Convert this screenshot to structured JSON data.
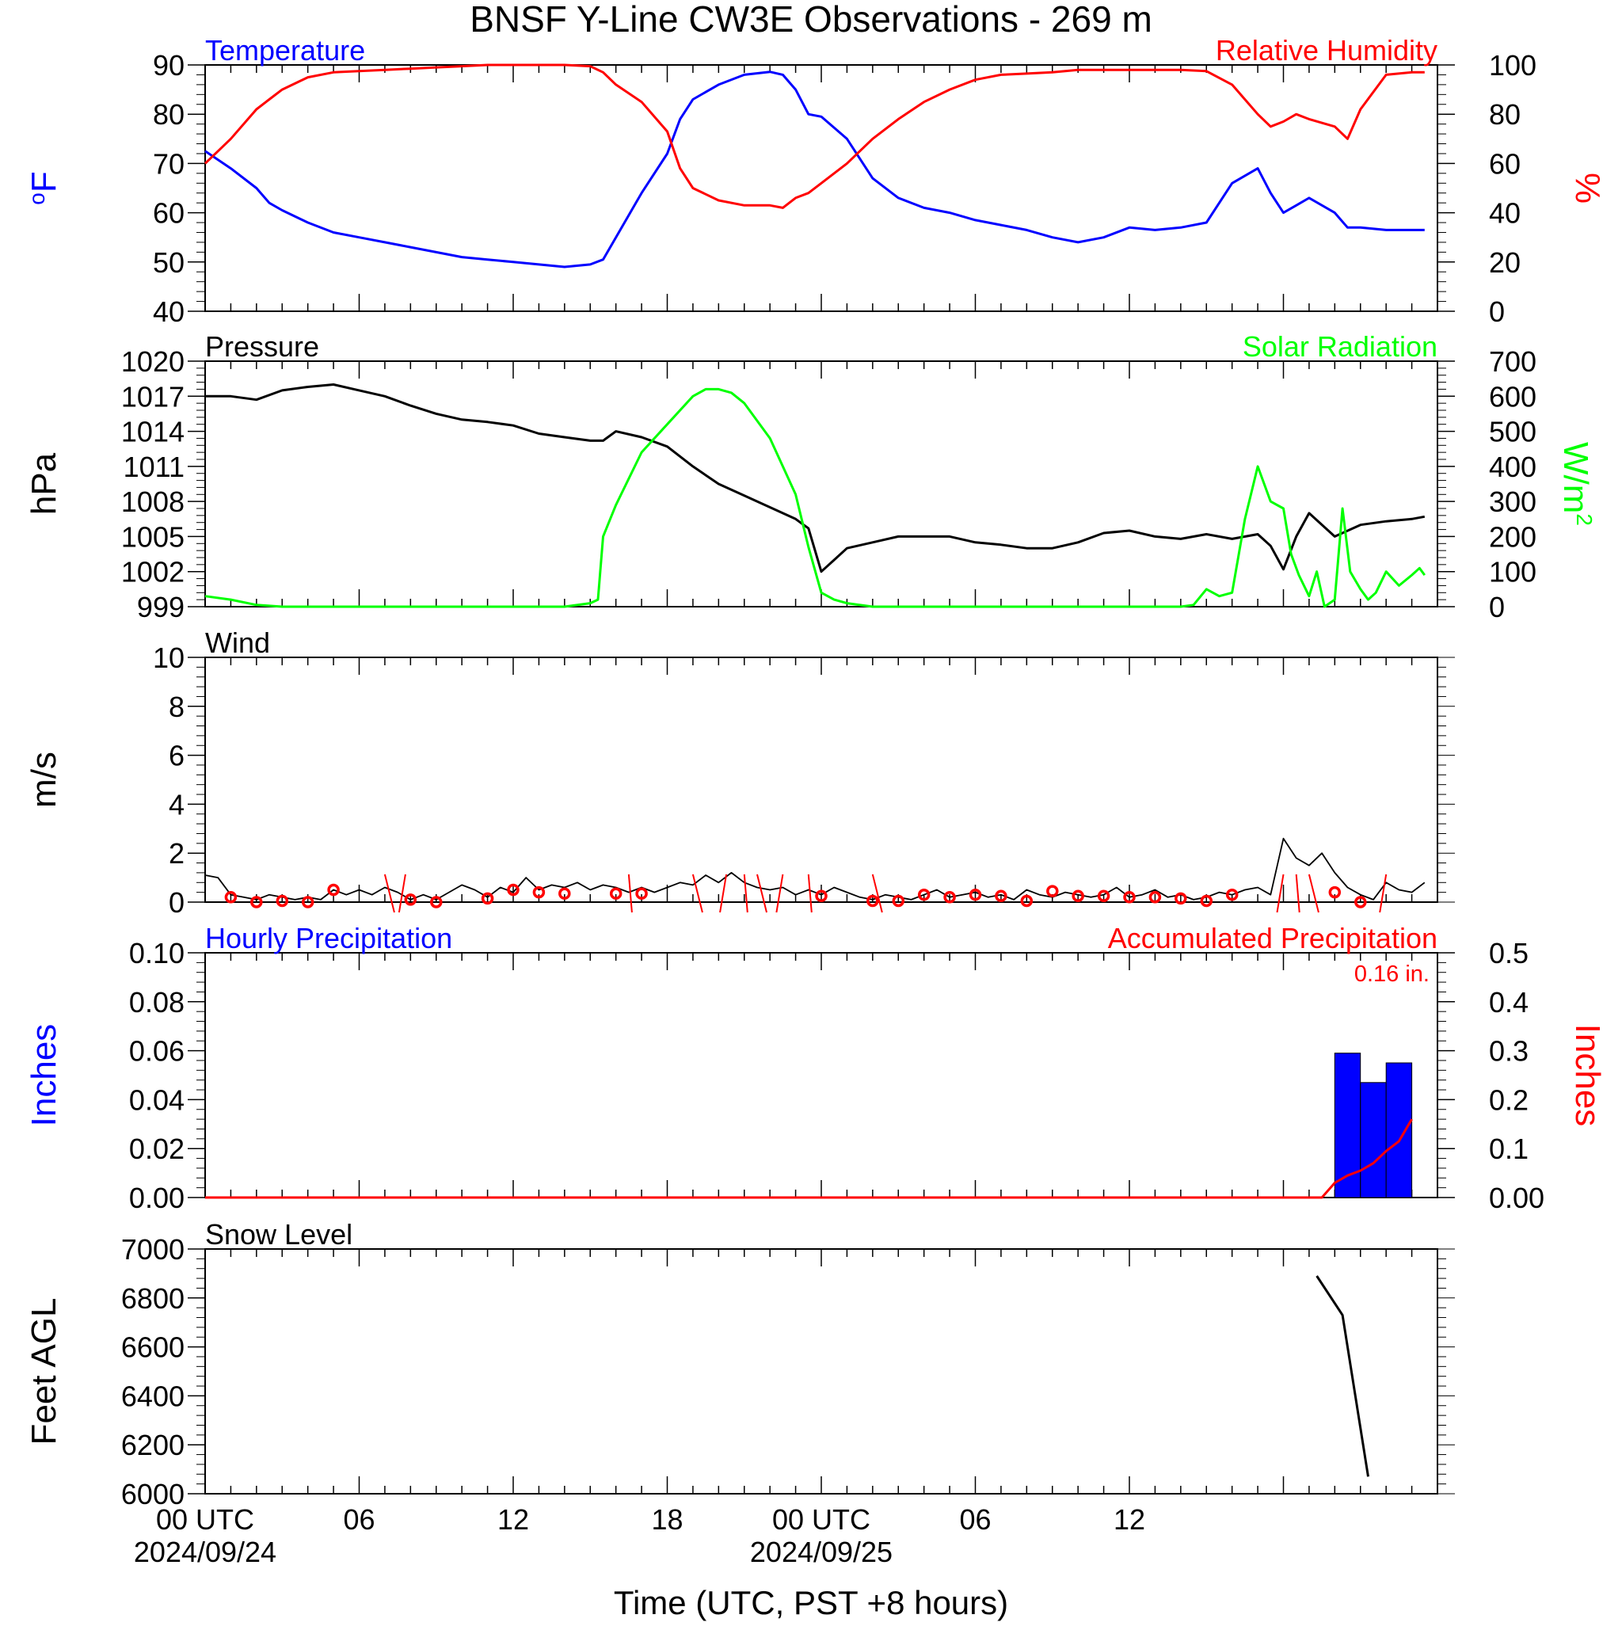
{
  "page_title": "BNSF Y-Line CW3E Observations - 269 m",
  "x_axis": {
    "label": "Time (UTC, PST +8 hours)",
    "tick_labels": [
      {
        "hour": 0,
        "text": "00 UTC",
        "date": "2024/09/24"
      },
      {
        "hour": 6,
        "text": "06",
        "date": ""
      },
      {
        "hour": 12,
        "text": "12",
        "date": ""
      },
      {
        "hour": 18,
        "text": "18",
        "date": ""
      },
      {
        "hour": 24,
        "text": "00 UTC",
        "date": "2024/09/25"
      },
      {
        "hour": 30,
        "text": "06",
        "date": ""
      },
      {
        "hour": 36,
        "text": "12",
        "date": ""
      }
    ],
    "range_hours": [
      0,
      48
    ]
  },
  "colors": {
    "temperature": "#0000ff",
    "humidity": "#ff0000",
    "pressure": "#000000",
    "solar": "#00ff00",
    "wind": "#000000",
    "wind_barb": "#ff0000",
    "hourly_precip": "#0000ff",
    "accum_precip": "#ff0000",
    "snow": "#000000"
  },
  "chart_data": [
    {
      "type": "line",
      "panel": "temperature-humidity",
      "series_labels": {
        "left": "Temperature",
        "right": "Relative Humidity"
      },
      "left_axis": {
        "label": "oF",
        "ylim": [
          40,
          90
        ],
        "ticks": [
          "40",
          "50",
          "60",
          "70",
          "80",
          "90"
        ]
      },
      "right_axis": {
        "label": "%",
        "ylim": [
          0,
          100
        ],
        "ticks": [
          "0",
          "20",
          "40",
          "60",
          "80",
          "100"
        ]
      },
      "series": [
        {
          "name": "Temperature",
          "axis": "left",
          "x": [
            0,
            1,
            2,
            2.5,
            3,
            4,
            5,
            6,
            7,
            8,
            9,
            10,
            11,
            12,
            13,
            14,
            15,
            15.5,
            16,
            17,
            18,
            18.5,
            19,
            20,
            21,
            22,
            22.5,
            23,
            23.5,
            24,
            25,
            26,
            27,
            28,
            29,
            30,
            31,
            32,
            33,
            34,
            35,
            36,
            37,
            38,
            39,
            40,
            41,
            41.5,
            42,
            42.5,
            43,
            44,
            44.5,
            45,
            46,
            47,
            47.5
          ],
          "y": [
            72.5,
            69,
            65,
            62,
            60.5,
            58,
            56,
            55,
            54,
            53,
            52,
            51,
            50.5,
            50,
            49.5,
            49,
            49.5,
            50.5,
            55,
            64,
            72,
            79,
            83,
            86,
            88,
            88.6,
            88,
            85,
            80,
            79.5,
            75,
            67,
            63,
            61,
            60,
            58.5,
            57.5,
            56.5,
            55,
            54,
            55,
            57,
            56.5,
            57,
            58,
            66,
            69,
            64,
            60,
            61.5,
            63,
            60,
            57,
            57,
            56.5,
            56.5,
            56.5
          ]
        },
        {
          "name": "Relative Humidity",
          "axis": "right",
          "x": [
            0,
            1,
            2,
            2.5,
            3,
            4,
            5,
            6,
            7,
            8,
            9,
            10,
            11,
            12,
            13,
            14,
            15,
            15.5,
            16,
            17,
            18,
            18.5,
            19,
            20,
            21,
            22,
            22.5,
            23,
            23.5,
            24,
            25,
            26,
            27,
            28,
            29,
            30,
            31,
            32,
            33,
            34,
            35,
            36,
            37,
            38,
            39,
            40,
            41,
            41.5,
            42,
            42.5,
            43,
            44,
            44.5,
            45,
            46,
            47,
            47.5
          ],
          "y": [
            60,
            70,
            82,
            86,
            90,
            95,
            97,
            97.5,
            98,
            98.5,
            99,
            99.5,
            100,
            100,
            100,
            100,
            99.5,
            97,
            92,
            85,
            73,
            58,
            50,
            45,
            43,
            43,
            42,
            46,
            48,
            52,
            60,
            70,
            78,
            85,
            90,
            94,
            96,
            96.5,
            97,
            98,
            98,
            98,
            98,
            98,
            97.5,
            92,
            80,
            75,
            77,
            80,
            78,
            75,
            70,
            82,
            96,
            97,
            97
          ]
        }
      ]
    },
    {
      "type": "line",
      "panel": "pressure-solar",
      "series_labels": {
        "left": "Pressure",
        "right": "Solar Radiation"
      },
      "left_axis": {
        "label": "hPa",
        "ylim": [
          999,
          1020
        ],
        "ticks": [
          "999",
          "1002",
          "1005",
          "1008",
          "1011",
          "1014",
          "1017",
          "1020"
        ]
      },
      "right_axis": {
        "label": "W/m2",
        "ylim": [
          0,
          700
        ],
        "ticks": [
          "0",
          "100",
          "200",
          "300",
          "400",
          "500",
          "600",
          "700"
        ]
      },
      "series": [
        {
          "name": "Pressure",
          "axis": "left",
          "x": [
            0,
            1,
            2,
            3,
            4,
            5,
            6,
            7,
            8,
            9,
            10,
            11,
            12,
            13,
            14,
            15,
            15.5,
            16,
            17,
            18,
            19,
            20,
            21,
            22,
            23,
            23.5,
            24,
            24.5,
            25,
            26,
            27,
            28,
            29,
            30,
            31,
            32,
            33,
            34,
            35,
            36,
            37,
            38,
            39,
            40,
            41,
            41.5,
            42,
            42.5,
            43,
            44,
            45,
            46,
            47,
            47.5
          ],
          "y": [
            1017,
            1017,
            1016.7,
            1017.5,
            1017.8,
            1018,
            1017.5,
            1017,
            1016.2,
            1015.5,
            1015,
            1014.8,
            1014.5,
            1013.8,
            1013.5,
            1013.2,
            1013.2,
            1014,
            1013.5,
            1012.7,
            1011,
            1009.5,
            1008.5,
            1007.5,
            1006.5,
            1005.7,
            1002,
            1003,
            1004,
            1004.5,
            1005,
            1005,
            1005,
            1004.5,
            1004.3,
            1004,
            1004,
            1004.5,
            1005.3,
            1005.5,
            1005,
            1004.8,
            1005.2,
            1004.8,
            1005.2,
            1004.2,
            1002.2,
            1005,
            1007,
            1005,
            1006,
            1006.3,
            1006.5,
            1006.7
          ]
        },
        {
          "name": "Solar Radiation",
          "axis": "right",
          "x": [
            0,
            1,
            2,
            3,
            4,
            5,
            6,
            7,
            8,
            9,
            10,
            11,
            12,
            13,
            14,
            15,
            15.3,
            15.5,
            16,
            17,
            18,
            19,
            19.5,
            20,
            20.5,
            21,
            22,
            23,
            23.5,
            24,
            24.5,
            25,
            26,
            27,
            28,
            29,
            30,
            31,
            32,
            33,
            34,
            35,
            36,
            37,
            38,
            38.5,
            39,
            39.5,
            40,
            40.5,
            41,
            41.5,
            42,
            42.3,
            42.6,
            43,
            43.3,
            43.6,
            44,
            44.3,
            44.6,
            45,
            45.3,
            45.6,
            46,
            46.5,
            47,
            47.3,
            47.5
          ],
          "y": [
            30,
            20,
            5,
            0,
            0,
            0,
            0,
            0,
            0,
            0,
            0,
            0,
            0,
            0,
            0,
            10,
            20,
            200,
            290,
            440,
            520,
            600,
            620,
            620,
            610,
            580,
            480,
            320,
            170,
            40,
            20,
            10,
            0,
            0,
            0,
            0,
            0,
            0,
            0,
            0,
            0,
            0,
            0,
            0,
            0,
            5,
            50,
            30,
            40,
            250,
            400,
            300,
            280,
            150,
            90,
            30,
            100,
            0,
            20,
            280,
            100,
            50,
            20,
            40,
            100,
            60,
            90,
            110,
            90
          ]
        }
      ]
    },
    {
      "type": "line",
      "panel": "wind",
      "series_labels": {
        "left": "Wind"
      },
      "left_axis": {
        "label": "m/s",
        "ylim": [
          0,
          10
        ],
        "ticks": [
          "0",
          "2",
          "4",
          "6",
          "8",
          "10"
        ]
      },
      "series": [
        {
          "name": "Wind speed",
          "axis": "left",
          "x": [
            0,
            0.5,
            1,
            1.5,
            2,
            2.5,
            3,
            3.5,
            4,
            4.5,
            5,
            5.5,
            6,
            6.5,
            7,
            7.5,
            8,
            8.5,
            9,
            9.5,
            10,
            10.5,
            11,
            11.5,
            12,
            12.5,
            13,
            13.5,
            14,
            14.5,
            15,
            15.5,
            16,
            16.5,
            17,
            17.5,
            18,
            18.5,
            19,
            19.5,
            20,
            20.5,
            21,
            21.5,
            22,
            22.5,
            23,
            23.5,
            24,
            24.5,
            25,
            25.5,
            26,
            26.5,
            27,
            27.5,
            28,
            28.5,
            29,
            29.5,
            30,
            30.5,
            31,
            31.5,
            32,
            32.5,
            33,
            33.5,
            34,
            34.5,
            35,
            35.5,
            36,
            36.5,
            37,
            37.5,
            38,
            38.5,
            39,
            39.5,
            40,
            40.5,
            41,
            41.5,
            42,
            42.5,
            43,
            43.5,
            44,
            44.5,
            45,
            45.5,
            46,
            46.5,
            47,
            47.5
          ],
          "y": [
            1.1,
            1,
            0.3,
            0.2,
            0.1,
            0.3,
            0.2,
            0.1,
            0.2,
            0.1,
            0.5,
            0.3,
            0.5,
            0.3,
            0.6,
            0.4,
            0.1,
            0.3,
            0.1,
            0.4,
            0.7,
            0.5,
            0.2,
            0.6,
            0.4,
            1,
            0.5,
            0.7,
            0.6,
            0.8,
            0.5,
            0.7,
            0.6,
            0.4,
            0.6,
            0.4,
            0.6,
            0.8,
            0.7,
            1.1,
            0.8,
            1.2,
            0.8,
            0.6,
            0.5,
            0.6,
            0.3,
            0.5,
            0.3,
            0.6,
            0.4,
            0.2,
            0.1,
            0.3,
            0.2,
            0.1,
            0.3,
            0.5,
            0.2,
            0.3,
            0.4,
            0.2,
            0.3,
            0.1,
            0.5,
            0.3,
            0.2,
            0.4,
            0.3,
            0.2,
            0.3,
            0.6,
            0.2,
            0.3,
            0.5,
            0.2,
            0.3,
            0.1,
            0.2,
            0.4,
            0.3,
            0.5,
            0.6,
            0.3,
            2.6,
            1.8,
            1.5,
            2,
            1.2,
            0.6,
            0.3,
            0.1,
            0.8,
            0.5,
            0.4,
            0.8
          ]
        },
        {
          "name": "Wind barbs",
          "axis": "left",
          "type": "scatter",
          "x": [
            1,
            2,
            3,
            4,
            5,
            8,
            9,
            11,
            12,
            13,
            14,
            16,
            17,
            24,
            26,
            27,
            28,
            29,
            30,
            31,
            32,
            33,
            34,
            35,
            36,
            37,
            38,
            39,
            40,
            44,
            45
          ],
          "y": [
            0.2,
            0,
            0.05,
            0,
            0.5,
            0.1,
            0,
            0.15,
            0.5,
            0.4,
            0.35,
            0.35,
            0.35,
            0.25,
            0.05,
            0.05,
            0.3,
            0.2,
            0.3,
            0.25,
            0.05,
            0.45,
            0.25,
            0.25,
            0.2,
            0.2,
            0.15,
            0.05,
            0.3,
            0.4,
            0
          ]
        }
      ]
    },
    {
      "type": "bar",
      "panel": "precipitation",
      "series_labels": {
        "left": "Hourly Precipitation",
        "right": "Accumulated Precipitation",
        "total": "0.16 in."
      },
      "left_axis": {
        "label": "Inches",
        "ylim": [
          0,
          0.1
        ],
        "ticks": [
          "0.00",
          "0.02",
          "0.04",
          "0.06",
          "0.08",
          "0.10"
        ]
      },
      "right_axis": {
        "label": "Inches",
        "ylim": [
          0,
          0.5
        ],
        "ticks": [
          "0.00",
          "0.1",
          "0.2",
          "0.3",
          "0.4",
          "0.5"
        ]
      },
      "series": [
        {
          "name": "Hourly Precipitation",
          "axis": "left",
          "type": "bar",
          "x": [
            44,
            45,
            46
          ],
          "values": [
            0.059,
            0.047,
            0.055
          ]
        },
        {
          "name": "Accumulated Precipitation",
          "axis": "right",
          "type": "line",
          "x": [
            0,
            43,
            43.5,
            44,
            44.5,
            45,
            45.5,
            46,
            46.5,
            47
          ],
          "y": [
            0,
            0,
            0,
            0.03,
            0.045,
            0.055,
            0.07,
            0.095,
            0.115,
            0.16
          ]
        }
      ]
    },
    {
      "type": "line",
      "panel": "snow-level",
      "series_labels": {
        "left": "Snow Level"
      },
      "left_axis": {
        "label": "Feet AGL",
        "ylim": [
          6000,
          7000
        ],
        "ticks": [
          "6000",
          "6200",
          "6400",
          "6600",
          "6800",
          "7000"
        ]
      },
      "series": [
        {
          "name": "Snow Level",
          "axis": "left",
          "x": [
            43.3,
            44.3,
            45.3
          ],
          "y": [
            6890,
            6730,
            6070
          ]
        }
      ]
    }
  ]
}
